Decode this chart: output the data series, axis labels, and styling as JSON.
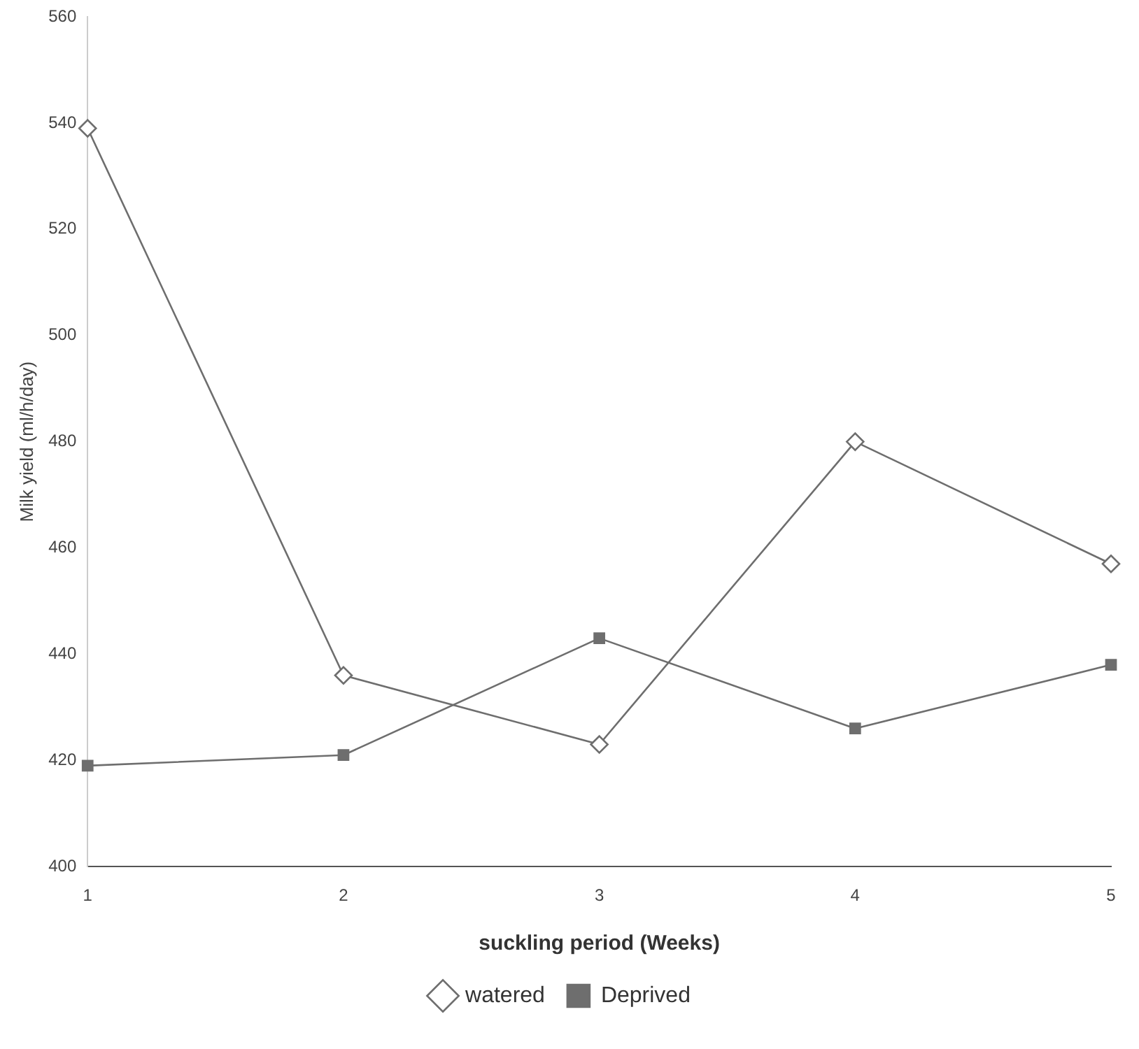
{
  "chart_data": {
    "type": "line",
    "xlabel": "suckling period (Weeks)",
    "ylabel": "Milk yield (ml/h/day)",
    "categories": [
      "1",
      "2",
      "3",
      "4",
      "5"
    ],
    "series": [
      {
        "name": "watered",
        "color": "#6e6e6e",
        "marker": "diamond",
        "values": [
          539,
          436,
          423,
          480,
          457
        ]
      },
      {
        "name": "Deprived",
        "color": "#6e6e6e",
        "marker": "square",
        "values": [
          419,
          421,
          443,
          426,
          438
        ]
      }
    ],
    "ylim": [
      400,
      560
    ],
    "yticks": [
      400,
      420,
      440,
      460,
      480,
      500,
      520,
      540,
      560
    ],
    "grid": false,
    "legend": "bottom",
    "line_style": "solid"
  }
}
